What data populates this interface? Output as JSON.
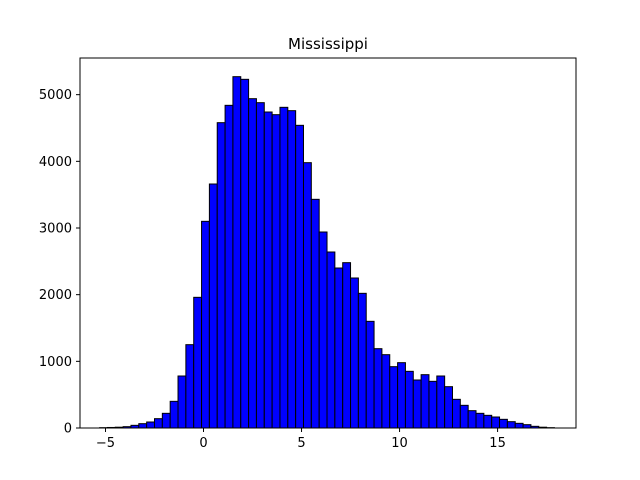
{
  "chart_data": {
    "type": "bar",
    "subtype": "histogram",
    "title": "Mississippi",
    "xlabel": "",
    "ylabel": "",
    "xlim": [
      -6.3,
      19.0
    ],
    "ylim": [
      0,
      5550
    ],
    "xticks": [
      -5,
      0,
      5,
      10,
      15
    ],
    "yticks": [
      0,
      1000,
      2000,
      3000,
      4000,
      5000
    ],
    "grid": false,
    "bar_color": "#0000ff",
    "edge_color": "#000000",
    "bins": {
      "start": -5.3,
      "width": 0.4,
      "counts": [
        5,
        8,
        12,
        20,
        40,
        65,
        90,
        140,
        220,
        400,
        780,
        1250,
        1960,
        3100,
        3660,
        4580,
        4840,
        5270,
        5230,
        4940,
        4880,
        4740,
        4700,
        4810,
        4760,
        4540,
        3980,
        3430,
        2940,
        2640,
        2400,
        2480,
        2250,
        2020,
        1600,
        1190,
        1100,
        920,
        980,
        850,
        720,
        800,
        700,
        780,
        620,
        430,
        340,
        260,
        220,
        190,
        165,
        130,
        95,
        70,
        50,
        25,
        12,
        5
      ]
    }
  }
}
